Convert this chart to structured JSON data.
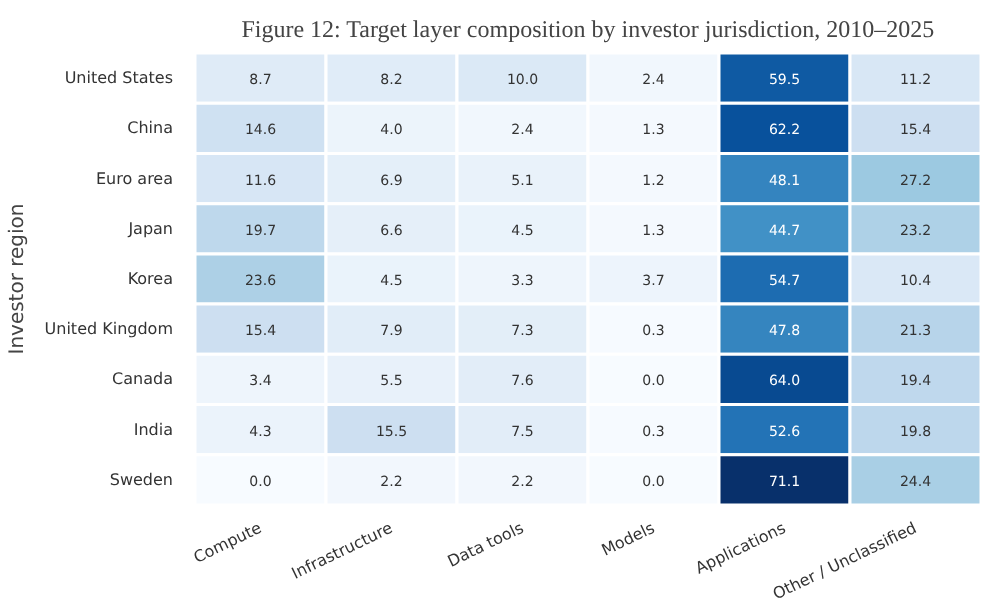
{
  "chart_data": {
    "type": "heatmap",
    "title": "Figure 12: Target layer composition by investor jurisdiction, 2010–2025",
    "ylabel": "Investor region",
    "categories": [
      "Compute",
      "Infrastructure",
      "Data tools",
      "Models",
      "Applications",
      "Other / Unclassified"
    ],
    "y_categories": [
      "United States",
      "China",
      "Euro area",
      "Japan",
      "Korea",
      "United Kingdom",
      "Canada",
      "India",
      "Sweden"
    ],
    "cells": [
      [
        8.7,
        8.2,
        10.0,
        2.4,
        59.5,
        11.2
      ],
      [
        14.6,
        4.0,
        2.4,
        1.3,
        62.2,
        15.4
      ],
      [
        11.6,
        6.9,
        5.1,
        1.2,
        48.1,
        27.2
      ],
      [
        19.7,
        6.6,
        4.5,
        1.3,
        44.7,
        23.2
      ],
      [
        23.6,
        4.5,
        3.3,
        3.7,
        54.7,
        10.4
      ],
      [
        15.4,
        7.9,
        7.3,
        0.3,
        47.8,
        21.3
      ],
      [
        3.4,
        5.5,
        7.6,
        0.0,
        64.0,
        19.4
      ],
      [
        4.3,
        15.5,
        7.5,
        0.3,
        52.6,
        19.8
      ],
      [
        0.0,
        2.2,
        2.2,
        0.0,
        71.1,
        24.4
      ]
    ],
    "cell_labels": [
      [
        "8.7",
        "8.2",
        "10.0",
        "2.4",
        "59.5",
        "11.2"
      ],
      [
        "14.6",
        "4.0",
        "2.4",
        "1.3",
        "62.2",
        "15.4"
      ],
      [
        "11.6",
        "6.9",
        "5.1",
        "1.2",
        "48.1",
        "27.2"
      ],
      [
        "19.7",
        "6.6",
        "4.5",
        "1.3",
        "44.7",
        "23.2"
      ],
      [
        "23.6",
        "4.5",
        "3.3",
        "3.7",
        "54.7",
        "10.4"
      ],
      [
        "15.4",
        "7.9",
        "7.3",
        "0.3",
        "47.8",
        "21.3"
      ],
      [
        "3.4",
        "5.5",
        "7.6",
        "0.0",
        "64.0",
        "19.4"
      ],
      [
        "4.3",
        "15.5",
        "7.5",
        "0.3",
        "52.6",
        "19.8"
      ],
      [
        "0.0",
        "2.2",
        "2.2",
        "0.0",
        "71.1",
        "24.4"
      ]
    ],
    "data_labels": true
  }
}
